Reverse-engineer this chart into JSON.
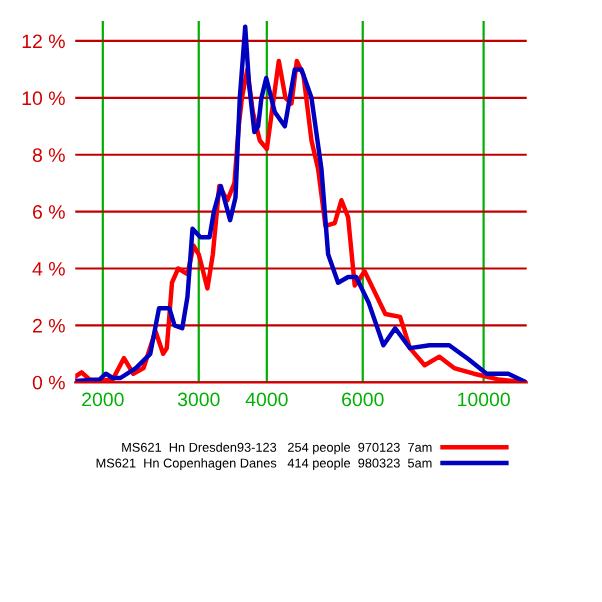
{
  "chart_data": {
    "type": "line",
    "log": "x",
    "xlim": [
      1780,
      12000
    ],
    "ylim": [
      0,
      12.7
    ],
    "xticks": [
      2000,
      3000,
      4000,
      6000,
      10000
    ],
    "yticks": [
      {
        "value": 0,
        "label": "0 %"
      },
      {
        "value": 2,
        "label": "2 %"
      },
      {
        "value": 4,
        "label": "4 %"
      },
      {
        "value": 6,
        "label": "6 %"
      },
      {
        "value": 8,
        "label": "8 %"
      },
      {
        "value": 10,
        "label": "10 %"
      },
      {
        "value": 12,
        "label": "12 %"
      }
    ],
    "grid": true,
    "legend": "bottom",
    "marker": "none",
    "line_style": "solid",
    "series": [
      {
        "name": "MS621  Hn Dresden93-123   254 people  970123  7am",
        "color": "#ff0000",
        "x": [
          1780,
          1829,
          1890,
          1974,
          2085,
          2187,
          2275,
          2376,
          2498,
          2581,
          2621,
          2679,
          2750,
          2860,
          2935,
          3000,
          3112,
          3184,
          3272,
          3386,
          3488,
          3552,
          3601,
          3684,
          3770,
          3883,
          4000,
          4208,
          4328,
          4439,
          4541,
          4670,
          4831,
          4968,
          5125,
          5331,
          5483,
          5640,
          5800,
          6050,
          6601,
          7026,
          7324,
          7794,
          8295,
          8828,
          9594,
          10643,
          11955
        ],
        "values": [
          0.2,
          0.35,
          0.1,
          0.05,
          0.1,
          0.85,
          0.3,
          0.5,
          1.8,
          1.0,
          1.2,
          3.5,
          4.0,
          3.8,
          4.8,
          4.5,
          3.3,
          4.5,
          6.9,
          6.4,
          7.0,
          9.0,
          10.0,
          11.0,
          9.5,
          8.5,
          8.2,
          11.3,
          10.0,
          9.8,
          11.3,
          10.8,
          8.5,
          7.5,
          5.5,
          5.6,
          6.4,
          5.8,
          3.4,
          3.9,
          2.4,
          2.3,
          1.2,
          0.6,
          0.9,
          0.5,
          0.3,
          0.1,
          0
        ]
      },
      {
        "name": "MS621  Hn Copenhagen Danes   414 people  980323  5am",
        "color": "#0000c0",
        "x": [
          1780,
          1974,
          2026,
          2085,
          2154,
          2300,
          2444,
          2536,
          2650,
          2708,
          2798,
          2860,
          2922,
          3021,
          3140,
          3198,
          3294,
          3425,
          3504,
          3568,
          3618,
          3651,
          3710,
          3795,
          3856,
          3910,
          3990,
          4137,
          4316,
          4502,
          4631,
          4831,
          5039,
          5183,
          5406,
          5640,
          5834,
          6151,
          6547,
          6881,
          7324,
          7958,
          8647,
          9396,
          10126,
          11094,
          11955
        ],
        "values": [
          0.05,
          0.1,
          0.3,
          0.15,
          0.15,
          0.5,
          1.0,
          2.6,
          2.6,
          2.0,
          1.9,
          3.0,
          5.4,
          5.1,
          5.1,
          6.0,
          6.9,
          5.7,
          6.5,
          10.0,
          11.5,
          12.5,
          10.5,
          8.8,
          9.0,
          10.0,
          10.7,
          9.5,
          9.0,
          11.0,
          11.0,
          10.0,
          7.5,
          4.5,
          3.5,
          3.7,
          3.7,
          2.8,
          1.3,
          1.9,
          1.2,
          1.3,
          1.3,
          0.8,
          0.3,
          0.3,
          0
        ]
      }
    ]
  }
}
